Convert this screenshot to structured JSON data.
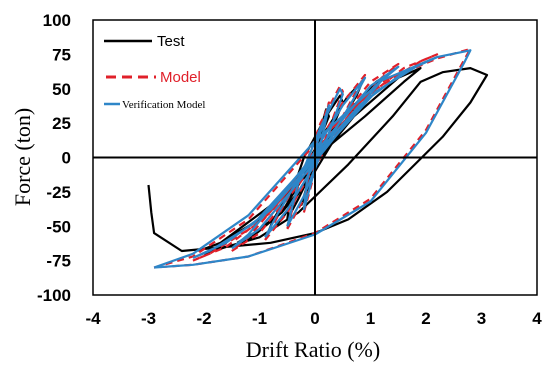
{
  "chart_data": {
    "type": "line",
    "title": "",
    "xlabel": "Drift Ratio (%)",
    "ylabel": "Force (ton)",
    "xlim": [
      -4,
      4
    ],
    "ylim": [
      -100,
      100
    ],
    "x_ticks": [
      "-4",
      "-3",
      "-2",
      "-1",
      "0",
      "1",
      "2",
      "3",
      "4"
    ],
    "y_ticks": [
      "100",
      "75",
      "50",
      "25",
      "0",
      "-25",
      "-50",
      "-75",
      "-100"
    ],
    "x_tick_values": [
      -4,
      -3,
      -2,
      -1,
      0,
      1,
      2,
      3,
      4
    ],
    "y_tick_values": [
      100,
      75,
      50,
      25,
      0,
      -25,
      -50,
      -75,
      -100
    ],
    "grid": false,
    "legend_position": "top-left",
    "series": [
      {
        "name": "Test",
        "color": "#000000",
        "style": "solid",
        "loops": [
          {
            "x": [
              -0.25,
              -0.1,
              0,
              0.1,
              0.2,
              0.25,
              0.1,
              0,
              -0.1,
              -0.25
            ],
            "y": [
              -35,
              -20,
              0,
              20,
              35,
              30,
              15,
              0,
              -15,
              -35
            ]
          },
          {
            "x": [
              -0.5,
              -0.3,
              0,
              0.3,
              0.5,
              0.45,
              0.2,
              -0.2,
              -0.45,
              -0.5
            ],
            "y": [
              -45,
              -30,
              -5,
              20,
              40,
              45,
              30,
              0,
              -30,
              -45
            ]
          },
          {
            "x": [
              -0.85,
              -0.6,
              -0.2,
              0.3,
              0.75,
              0.85,
              0.6,
              0.2,
              -0.3,
              -0.75,
              -0.85
            ],
            "y": [
              -55,
              -45,
              -20,
              15,
              45,
              55,
              45,
              20,
              -15,
              -45,
              -55
            ]
          },
          {
            "x": [
              -1.4,
              -1.1,
              -0.6,
              0,
              0.6,
              1.1,
              1.3,
              1.0,
              0.5,
              0,
              -0.6,
              -1.2,
              -1.4
            ],
            "y": [
              -62,
              -55,
              -40,
              -10,
              30,
              55,
              60,
              50,
              30,
              0,
              -40,
              -60,
              -62
            ]
          },
          {
            "x": [
              -2.1,
              -1.7,
              -1.0,
              -0.2,
              0.7,
              1.5,
              1.9,
              1.6,
              0.9,
              0,
              -0.8,
              -1.7,
              -2.1
            ],
            "y": [
              -68,
              -62,
              -45,
              -15,
              30,
              58,
              65,
              55,
              30,
              0,
              -35,
              -62,
              -68
            ]
          },
          {
            "x": [
              -2.0,
              -1.6,
              -1.0,
              -0.3,
              0.6,
              1.4,
              1.9,
              2.3,
              2.8,
              3.1,
              2.8,
              2.3,
              1.8,
              1.3,
              0.6,
              0,
              -0.8,
              -1.6,
              -2.4,
              -2.9,
              -2.95,
              -3.0
            ],
            "y": [
              -70,
              -65,
              -58,
              -40,
              -5,
              30,
              55,
              62,
              65,
              60,
              40,
              15,
              -5,
              -25,
              -45,
              -55,
              -62,
              -65,
              -68,
              -55,
              -40,
              -20
            ]
          }
        ]
      },
      {
        "name": "Model",
        "color": "#e0202a",
        "style": "dashed",
        "loops": [
          {
            "x": [
              -0.2,
              0,
              0.2,
              0.25,
              0.05,
              -0.15,
              -0.2
            ],
            "y": [
              -40,
              -10,
              30,
              40,
              15,
              -20,
              -40
            ]
          },
          {
            "x": [
              -0.5,
              -0.2,
              0.2,
              0.5,
              0.45,
              0.1,
              -0.3,
              -0.5
            ],
            "y": [
              -52,
              -30,
              15,
              48,
              52,
              25,
              -20,
              -52
            ]
          },
          {
            "x": [
              -0.9,
              -0.5,
              0.1,
              0.7,
              0.9,
              0.5,
              -0.1,
              -0.7,
              -0.9
            ],
            "y": [
              -60,
              -40,
              0,
              45,
              60,
              40,
              0,
              -45,
              -60
            ]
          },
          {
            "x": [
              -1.5,
              -1.0,
              -0.3,
              0.5,
              1.2,
              1.5,
              1.0,
              0.3,
              -0.5,
              -1.2,
              -1.5
            ],
            "y": [
              -68,
              -55,
              -20,
              25,
              58,
              68,
              55,
              20,
              -25,
              -58,
              -68
            ]
          },
          {
            "x": [
              -2.2,
              -1.6,
              -0.8,
              0.2,
              1.1,
              1.9,
              2.2,
              1.6,
              0.8,
              -0.2,
              -1.1,
              -1.9,
              -2.2
            ],
            "y": [
              -75,
              -65,
              -40,
              10,
              50,
              70,
              75,
              65,
              40,
              -10,
              -50,
              -70,
              -75
            ]
          },
          {
            "x": [
              -2.9,
              -2.2,
              -1.2,
              0,
              1.2,
              2.2,
              2.8,
              2.7,
              2.0,
              1.0,
              0,
              -1.2,
              -2.2,
              -2.9
            ],
            "y": [
              -80,
              -72,
              -45,
              10,
              55,
              72,
              79,
              72,
              20,
              -30,
              -55,
              -72,
              -78,
              -80
            ]
          }
        ]
      },
      {
        "name": "Verification Model",
        "color": "#2e86c8",
        "style": "solid",
        "loops": [
          {
            "x": [
              -0.2,
              0,
              0.2,
              0.25,
              0.05,
              -0.15,
              -0.2
            ],
            "y": [
              -38,
              -8,
              28,
              38,
              12,
              -18,
              -38
            ]
          },
          {
            "x": [
              -0.5,
              -0.2,
              0.2,
              0.5,
              0.45,
              0.1,
              -0.3,
              -0.5
            ],
            "y": [
              -50,
              -28,
              12,
              46,
              50,
              22,
              -18,
              -50
            ]
          },
          {
            "x": [
              -0.9,
              -0.5,
              0.1,
              0.7,
              0.9,
              0.5,
              -0.1,
              -0.7,
              -0.9
            ],
            "y": [
              -58,
              -38,
              2,
              43,
              58,
              38,
              -2,
              -43,
              -58
            ]
          },
          {
            "x": [
              -1.5,
              -1.0,
              -0.3,
              0.5,
              1.2,
              1.5,
              1.0,
              0.3,
              -0.5,
              -1.2,
              -1.5
            ],
            "y": [
              -66,
              -52,
              -18,
              22,
              56,
              66,
              52,
              18,
              -22,
              -56,
              -66
            ]
          },
          {
            "x": [
              -2.2,
              -1.6,
              -0.8,
              0.2,
              1.1,
              1.9,
              2.2,
              1.6,
              0.8,
              -0.2,
              -1.1,
              -1.9,
              -2.2
            ],
            "y": [
              -73,
              -62,
              -38,
              8,
              48,
              68,
              73,
              62,
              38,
              -8,
              -48,
              -68,
              -73
            ]
          },
          {
            "x": [
              -2.9,
              -2.2,
              -1.2,
              0,
              1.2,
              2.2,
              2.8,
              2.7,
              2.0,
              1.0,
              0,
              -1.2,
              -2.2,
              -2.9
            ],
            "y": [
              -80,
              -70,
              -42,
              12,
              56,
              73,
              78,
              70,
              18,
              -32,
              -56,
              -72,
              -78,
              -80
            ]
          }
        ]
      }
    ]
  }
}
